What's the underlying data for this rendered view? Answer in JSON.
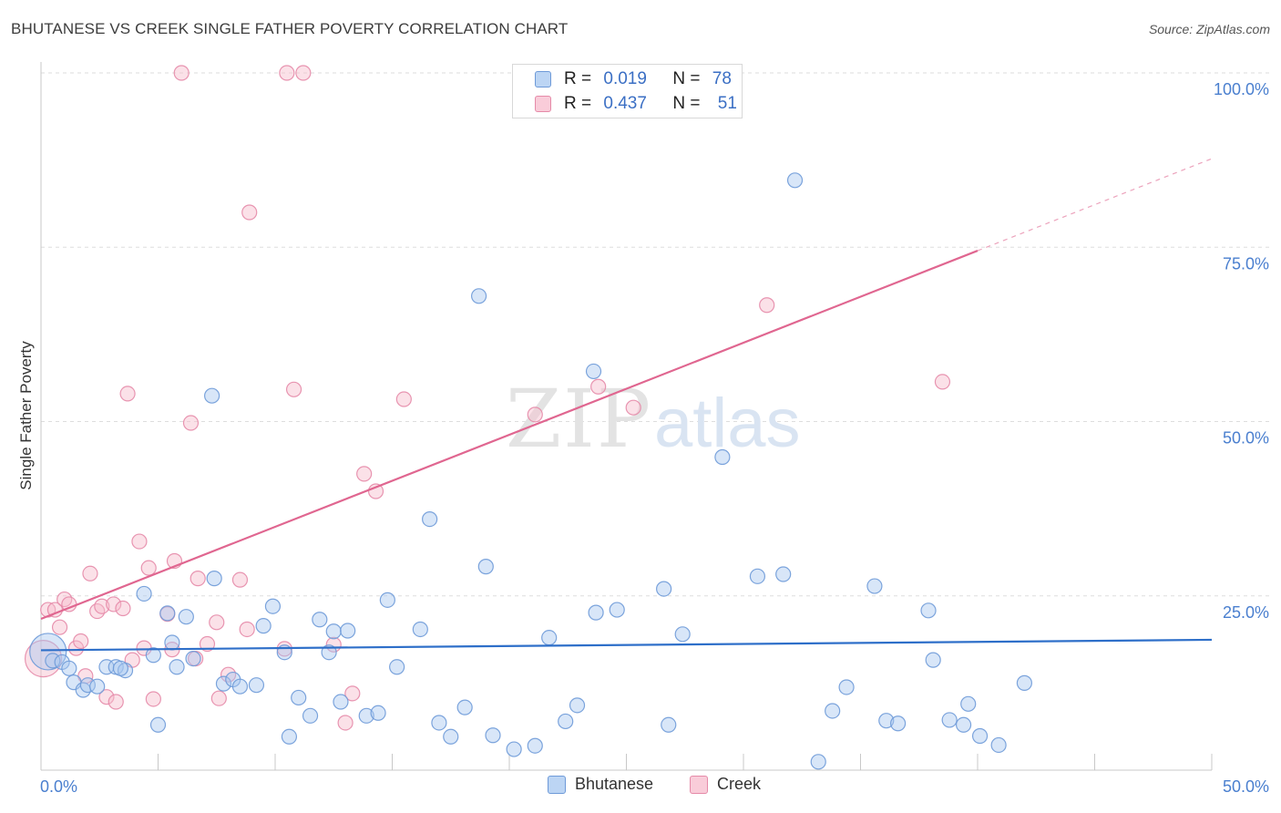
{
  "title": "BHUTANESE VS CREEK SINGLE FATHER POVERTY CORRELATION CHART",
  "source": "Source: ZipAtlas.com",
  "watermark": {
    "part1": "ZIP",
    "part2": "atlas"
  },
  "legend": {
    "rows": [
      {
        "r_label": "R =",
        "r_value": "0.019",
        "n_label": "N =",
        "n_value": "78"
      },
      {
        "r_label": "R =",
        "r_value": "0.437",
        "n_label": "N =",
        "n_value": "51"
      }
    ]
  },
  "colors": {
    "bhutanese_fill": "#a8c8f0",
    "bhutanese_stroke": "#6e9ad8",
    "bhutanese_line": "#2e6fc9",
    "creek_fill": "#f7bccd",
    "creek_stroke": "#e58aa8",
    "creek_line": "#e06690",
    "tick_label": "#4a7fcf"
  },
  "chart_data": {
    "type": "scatter",
    "title": "BHUTANESE VS CREEK SINGLE FATHER POVERTY CORRELATION CHART",
    "xlabel": "",
    "ylabel": "Single Father Poverty",
    "xlim": [
      0,
      50
    ],
    "ylim": [
      0,
      100
    ],
    "x_tick_labels": [
      "0.0%",
      "50.0%"
    ],
    "y_ticks": [
      25,
      50,
      75,
      100
    ],
    "y_tick_labels": [
      "25.0%",
      "50.0%",
      "75.0%",
      "100.0%"
    ],
    "legend_position": "top-center",
    "series": [
      {
        "name": "Bhutanese",
        "r": 0.019,
        "n": 78,
        "trend": {
          "x": [
            0,
            50
          ],
          "y": [
            17.2,
            18.7
          ]
        },
        "points": [
          [
            0.3,
            17.0
          ],
          [
            0.5,
            15.7
          ],
          [
            0.9,
            15.5
          ],
          [
            1.2,
            14.6
          ],
          [
            1.4,
            12.6
          ],
          [
            1.8,
            11.5
          ],
          [
            2.0,
            12.2
          ],
          [
            2.4,
            12.0
          ],
          [
            2.8,
            14.8
          ],
          [
            3.2,
            14.8
          ],
          [
            3.6,
            14.3
          ],
          [
            3.4,
            14.6
          ],
          [
            4.4,
            25.3
          ],
          [
            4.8,
            16.5
          ],
          [
            5.0,
            6.5
          ],
          [
            5.4,
            22.5
          ],
          [
            5.6,
            18.3
          ],
          [
            5.8,
            14.8
          ],
          [
            6.2,
            22.0
          ],
          [
            6.5,
            16.0
          ],
          [
            7.3,
            53.7
          ],
          [
            7.4,
            27.5
          ],
          [
            7.8,
            12.4
          ],
          [
            8.2,
            13.0
          ],
          [
            8.5,
            12.0
          ],
          [
            9.2,
            12.2
          ],
          [
            9.5,
            20.7
          ],
          [
            9.9,
            23.5
          ],
          [
            10.4,
            16.9
          ],
          [
            10.6,
            4.8
          ],
          [
            11.0,
            10.4
          ],
          [
            11.5,
            7.8
          ],
          [
            11.9,
            21.6
          ],
          [
            12.3,
            16.9
          ],
          [
            12.5,
            19.9
          ],
          [
            12.8,
            9.8
          ],
          [
            13.1,
            20.0
          ],
          [
            13.9,
            7.8
          ],
          [
            14.4,
            8.2
          ],
          [
            14.8,
            24.4
          ],
          [
            15.2,
            14.8
          ],
          [
            16.2,
            20.2
          ],
          [
            16.6,
            36.0
          ],
          [
            17.0,
            6.8
          ],
          [
            17.5,
            4.8
          ],
          [
            18.1,
            9.0
          ],
          [
            18.7,
            68.0
          ],
          [
            19.0,
            29.2
          ],
          [
            19.3,
            5.0
          ],
          [
            20.2,
            3.0
          ],
          [
            21.1,
            3.5
          ],
          [
            21.7,
            19.0
          ],
          [
            22.4,
            7.0
          ],
          [
            22.9,
            9.3
          ],
          [
            23.6,
            57.2
          ],
          [
            23.7,
            22.6
          ],
          [
            24.6,
            23.0
          ],
          [
            26.6,
            26.0
          ],
          [
            26.8,
            6.5
          ],
          [
            27.4,
            19.5
          ],
          [
            29.1,
            44.9
          ],
          [
            30.6,
            27.8
          ],
          [
            31.7,
            28.1
          ],
          [
            32.2,
            84.6
          ],
          [
            33.2,
            1.2
          ],
          [
            33.8,
            8.5
          ],
          [
            34.4,
            11.9
          ],
          [
            35.6,
            26.4
          ],
          [
            36.1,
            7.1
          ],
          [
            36.6,
            6.7
          ],
          [
            37.9,
            22.9
          ],
          [
            38.1,
            15.8
          ],
          [
            38.8,
            7.2
          ],
          [
            39.4,
            6.5
          ],
          [
            39.6,
            9.5
          ],
          [
            40.1,
            4.9
          ],
          [
            40.9,
            3.6
          ],
          [
            42.0,
            12.5
          ]
        ]
      },
      {
        "name": "Creek",
        "r": 0.437,
        "n": 51,
        "trend": {
          "x": [
            0,
            40
          ],
          "y": [
            21.7,
            74.5
          ]
        },
        "trend_dashed": {
          "x": [
            40,
            50
          ],
          "y": [
            74.5,
            87.7
          ]
        },
        "points": [
          [
            0.1,
            16.0
          ],
          [
            0.3,
            23.0
          ],
          [
            0.6,
            23.0
          ],
          [
            0.8,
            20.5
          ],
          [
            1.0,
            24.5
          ],
          [
            1.2,
            23.8
          ],
          [
            1.5,
            17.5
          ],
          [
            1.7,
            18.5
          ],
          [
            1.9,
            13.5
          ],
          [
            2.1,
            28.2
          ],
          [
            2.4,
            22.8
          ],
          [
            2.6,
            23.5
          ],
          [
            2.8,
            10.5
          ],
          [
            3.1,
            23.8
          ],
          [
            3.2,
            9.8
          ],
          [
            3.5,
            23.2
          ],
          [
            3.7,
            54.0
          ],
          [
            3.9,
            15.8
          ],
          [
            4.2,
            32.8
          ],
          [
            4.4,
            17.5
          ],
          [
            4.6,
            29.0
          ],
          [
            4.8,
            10.2
          ],
          [
            5.4,
            22.4
          ],
          [
            5.6,
            17.3
          ],
          [
            5.7,
            30.0
          ],
          [
            6.0,
            100.0
          ],
          [
            6.4,
            49.8
          ],
          [
            6.6,
            16.0
          ],
          [
            6.7,
            27.5
          ],
          [
            7.1,
            18.1
          ],
          [
            7.5,
            21.2
          ],
          [
            7.6,
            10.3
          ],
          [
            8.0,
            13.7
          ],
          [
            8.5,
            27.3
          ],
          [
            8.8,
            20.2
          ],
          [
            8.9,
            80.0
          ],
          [
            10.4,
            17.4
          ],
          [
            10.5,
            100.0
          ],
          [
            10.8,
            54.6
          ],
          [
            11.2,
            100.0
          ],
          [
            12.5,
            18.0
          ],
          [
            13.0,
            6.8
          ],
          [
            13.3,
            11.0
          ],
          [
            13.8,
            42.5
          ],
          [
            14.3,
            40.0
          ],
          [
            15.5,
            53.2
          ],
          [
            21.1,
            51.0
          ],
          [
            23.8,
            55.0
          ],
          [
            25.3,
            52.0
          ],
          [
            31.0,
            66.7
          ],
          [
            38.5,
            55.7
          ]
        ]
      }
    ]
  },
  "bottom_legend": {
    "items": [
      "Bhutanese",
      "Creek"
    ]
  }
}
